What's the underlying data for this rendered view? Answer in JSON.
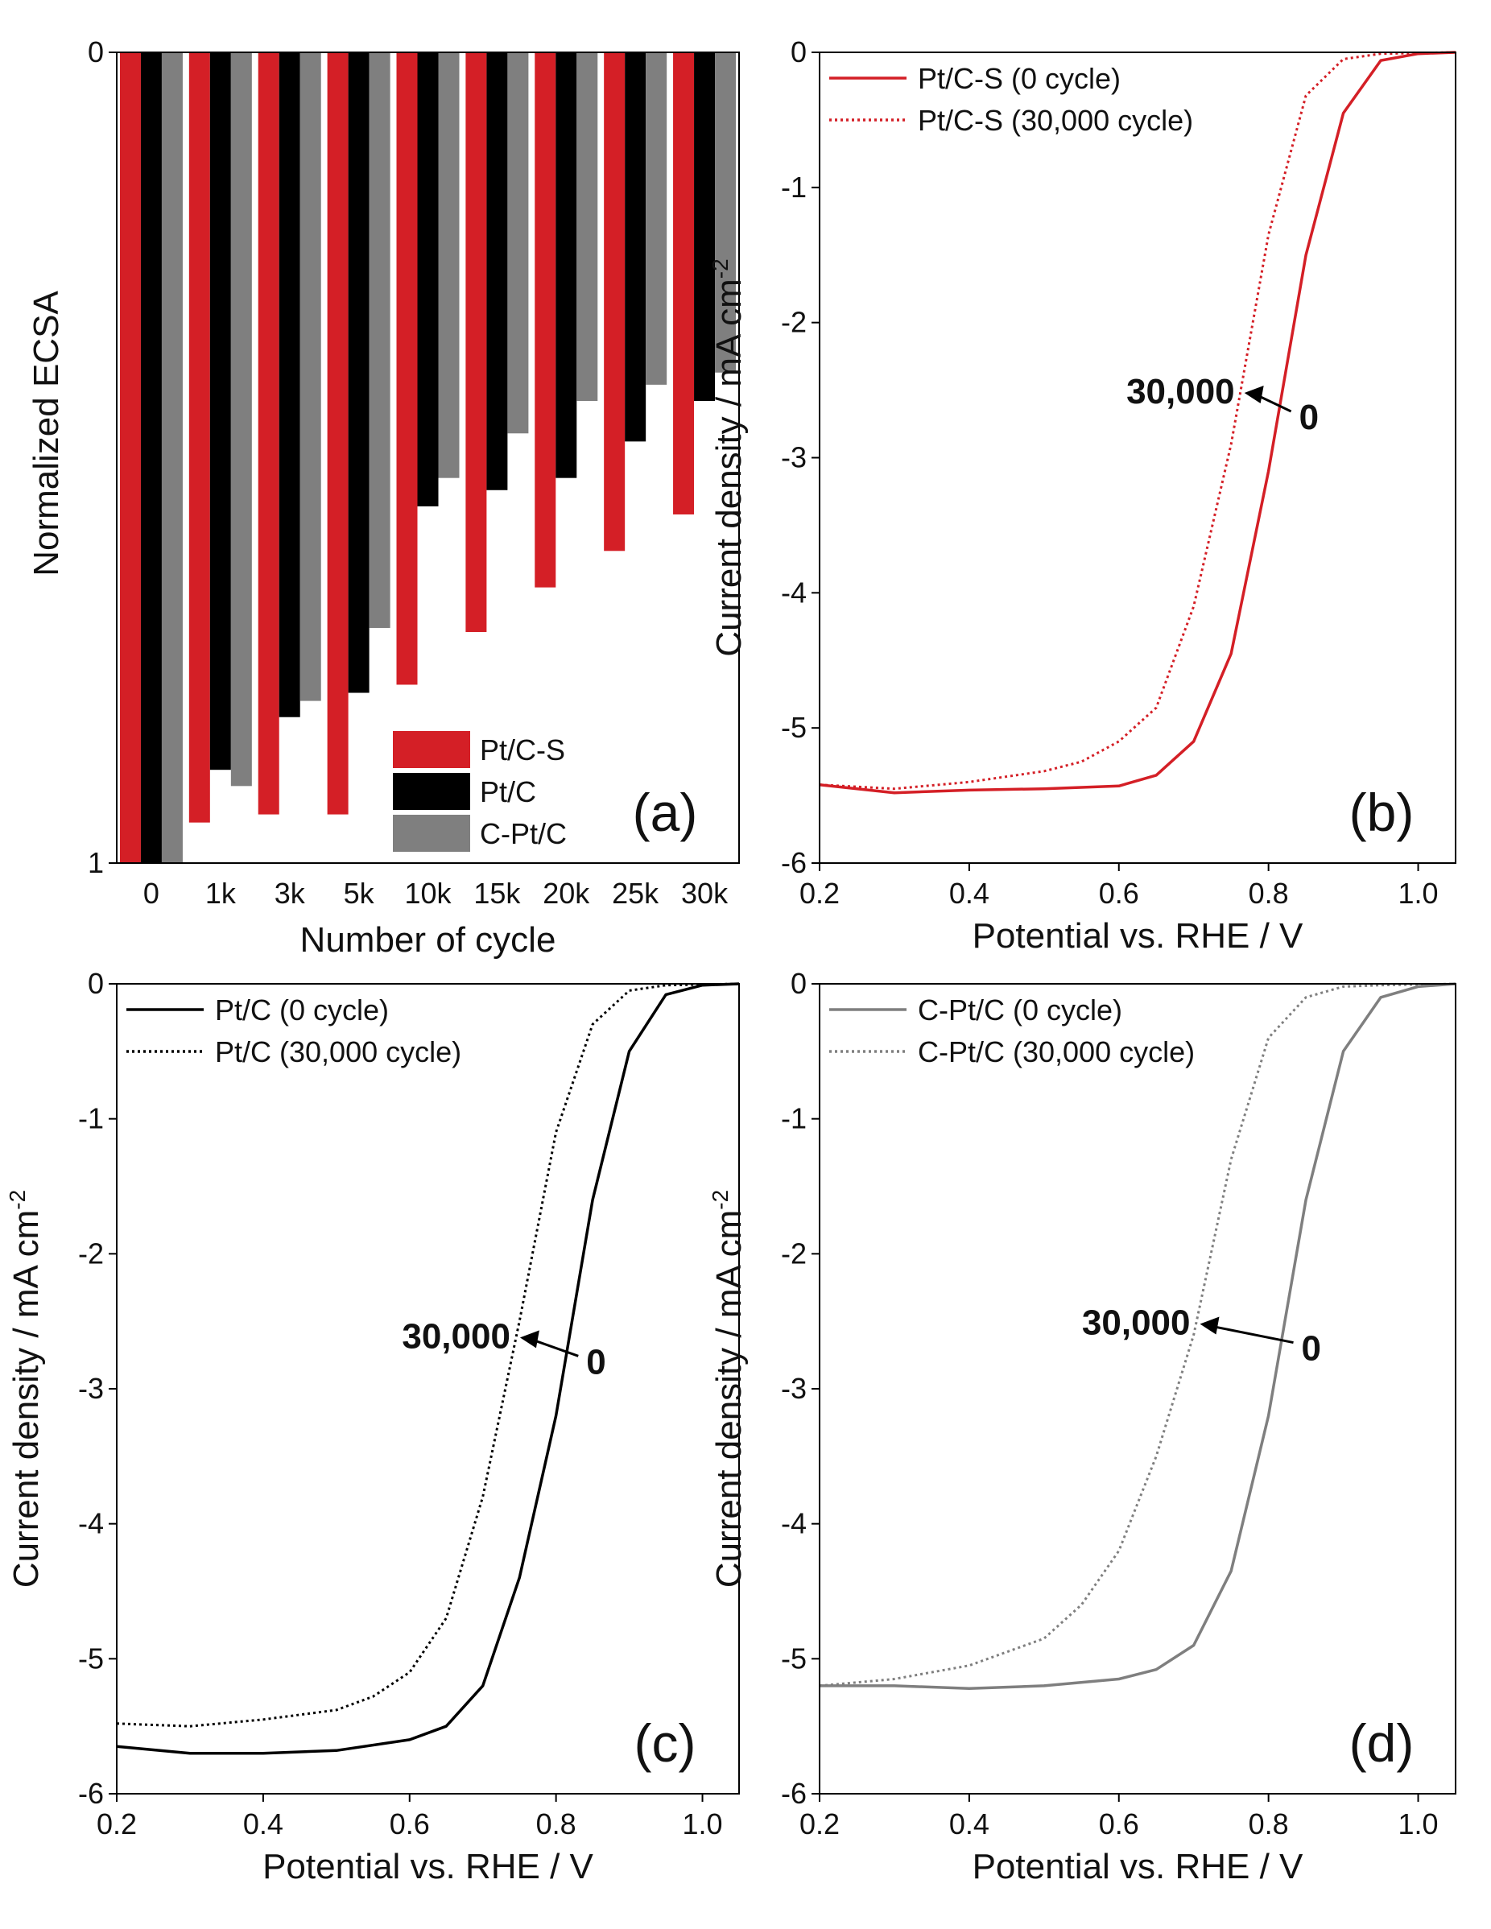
{
  "colors": {
    "pt_c_s": "#d41f26",
    "pt_c": "#000000",
    "c_pt_c": "#7f7f7f"
  },
  "chart_data": [
    {
      "panel": "a",
      "type": "bar",
      "label": "(a)",
      "xlabel": "Number of cycle",
      "ylabel": "Normalized ECSA",
      "categories": [
        "0",
        "1k",
        "3k",
        "5k",
        "10k",
        "15k",
        "20k",
        "25k",
        "30k"
      ],
      "ylim": [
        0,
        1
      ],
      "y_inverted": true,
      "yticks": [
        {
          "value": 0,
          "label": "0"
        },
        {
          "value": 1,
          "label": "1"
        }
      ],
      "legend_position": "bottom-right",
      "series": [
        {
          "name": "Pt/C-S",
          "color": "#d41f26",
          "values": [
            1.0,
            0.95,
            0.94,
            0.94,
            0.78,
            0.715,
            0.66,
            0.615,
            0.57
          ]
        },
        {
          "name": "Pt/C",
          "color": "#000000",
          "values": [
            1.0,
            0.885,
            0.82,
            0.79,
            0.56,
            0.54,
            0.525,
            0.48,
            0.43
          ]
        },
        {
          "name": "C-Pt/C",
          "color": "#7f7f7f",
          "values": [
            1.0,
            0.905,
            0.8,
            0.71,
            0.525,
            0.47,
            0.43,
            0.41,
            0.395
          ]
        }
      ]
    },
    {
      "panel": "b",
      "type": "line",
      "label": "(b)",
      "xlabel": "Potential vs. RHE / V",
      "ylabel": "Current density / mA cm",
      "ylabel_sup": "-2",
      "xlim": [
        0.2,
        1.05
      ],
      "ylim": [
        -6,
        0
      ],
      "xticks": [
        0.2,
        0.4,
        0.6,
        0.8,
        1.0
      ],
      "xtick_labels": [
        "0.2",
        "0.4",
        "0.6",
        "0.8",
        "1.0"
      ],
      "yticks": [
        0,
        -1,
        -2,
        -3,
        -4,
        -5,
        -6
      ],
      "ytick_labels": [
        "0",
        "-1",
        "-2",
        "-3",
        "-4",
        "-5",
        "-6"
      ],
      "legend_position": "top-left",
      "series": [
        {
          "name": "Pt/C-S (0 cycle)",
          "color": "#d41f26",
          "style": "solid",
          "x": [
            0.2,
            0.3,
            0.4,
            0.5,
            0.6,
            0.65,
            0.7,
            0.75,
            0.8,
            0.85,
            0.9,
            0.95,
            1.0,
            1.05
          ],
          "y": [
            -5.42,
            -5.48,
            -5.46,
            -5.45,
            -5.43,
            -5.35,
            -5.1,
            -4.45,
            -3.1,
            -1.5,
            -0.45,
            -0.06,
            -0.01,
            0.0
          ]
        },
        {
          "name": "Pt/C-S (30,000 cycle)",
          "color": "#d41f26",
          "style": "dotted",
          "x": [
            0.2,
            0.3,
            0.4,
            0.5,
            0.55,
            0.6,
            0.65,
            0.7,
            0.75,
            0.8,
            0.85,
            0.9,
            0.95,
            1.05
          ],
          "y": [
            -5.42,
            -5.45,
            -5.4,
            -5.32,
            -5.25,
            -5.1,
            -4.85,
            -4.1,
            -2.9,
            -1.35,
            -0.32,
            -0.05,
            -0.01,
            0.0
          ]
        }
      ],
      "annotation": {
        "from_label": "0",
        "to_label": "30,000",
        "y": -2.55
      }
    },
    {
      "panel": "c",
      "type": "line",
      "label": "(c)",
      "xlabel": "Potential vs. RHE / V",
      "ylabel": "Current density / mA cm",
      "ylabel_sup": "-2",
      "xlim": [
        0.2,
        1.05
      ],
      "ylim": [
        -6,
        0
      ],
      "xticks": [
        0.2,
        0.4,
        0.6,
        0.8,
        1.0
      ],
      "xtick_labels": [
        "0.2",
        "0.4",
        "0.6",
        "0.8",
        "1.0"
      ],
      "yticks": [
        0,
        -1,
        -2,
        -3,
        -4,
        -5,
        -6
      ],
      "ytick_labels": [
        "0",
        "-1",
        "-2",
        "-3",
        "-4",
        "-5",
        "-6"
      ],
      "legend_position": "top-left",
      "series": [
        {
          "name": "Pt/C (0 cycle)",
          "color": "#000000",
          "style": "solid",
          "x": [
            0.2,
            0.3,
            0.4,
            0.5,
            0.6,
            0.65,
            0.7,
            0.75,
            0.8,
            0.85,
            0.9,
            0.95,
            1.0,
            1.05
          ],
          "y": [
            -5.65,
            -5.7,
            -5.7,
            -5.68,
            -5.6,
            -5.5,
            -5.2,
            -4.4,
            -3.2,
            -1.6,
            -0.5,
            -0.08,
            -0.01,
            0.0
          ]
        },
        {
          "name": "Pt/C (30,000 cycle)",
          "color": "#000000",
          "style": "dotted",
          "x": [
            0.2,
            0.3,
            0.4,
            0.5,
            0.55,
            0.6,
            0.65,
            0.7,
            0.75,
            0.8,
            0.85,
            0.9,
            0.95,
            1.05
          ],
          "y": [
            -5.48,
            -5.5,
            -5.45,
            -5.38,
            -5.28,
            -5.1,
            -4.7,
            -3.8,
            -2.5,
            -1.1,
            -0.3,
            -0.05,
            -0.01,
            0.0
          ]
        }
      ],
      "annotation": {
        "from_label": "0",
        "to_label": "30,000",
        "y": -2.65
      }
    },
    {
      "panel": "d",
      "type": "line",
      "label": "(d)",
      "xlabel": "Potential vs. RHE / V",
      "ylabel": "Current density / mA cm",
      "ylabel_sup": "-2",
      "xlim": [
        0.2,
        1.05
      ],
      "ylim": [
        -6,
        0
      ],
      "xticks": [
        0.2,
        0.4,
        0.6,
        0.8,
        1.0
      ],
      "xtick_labels": [
        "0.2",
        "0.4",
        "0.6",
        "0.8",
        "1.0"
      ],
      "yticks": [
        0,
        -1,
        -2,
        -3,
        -4,
        -5,
        -6
      ],
      "ytick_labels": [
        "0",
        "-1",
        "-2",
        "-3",
        "-4",
        "-5",
        "-6"
      ],
      "legend_position": "top-left",
      "series": [
        {
          "name": "C-Pt/C (0 cycle)",
          "color": "#7f7f7f",
          "style": "solid",
          "x": [
            0.2,
            0.3,
            0.4,
            0.5,
            0.6,
            0.65,
            0.7,
            0.75,
            0.8,
            0.85,
            0.9,
            0.95,
            1.0,
            1.05
          ],
          "y": [
            -5.2,
            -5.2,
            -5.22,
            -5.2,
            -5.15,
            -5.08,
            -4.9,
            -4.35,
            -3.2,
            -1.6,
            -0.5,
            -0.1,
            -0.02,
            0.0
          ]
        },
        {
          "name": "C-Pt/C (30,000 cycle)",
          "color": "#7f7f7f",
          "style": "dotted",
          "x": [
            0.2,
            0.3,
            0.4,
            0.5,
            0.55,
            0.6,
            0.65,
            0.7,
            0.75,
            0.8,
            0.85,
            0.9,
            0.95,
            1.05
          ],
          "y": [
            -5.2,
            -5.15,
            -5.05,
            -4.85,
            -4.6,
            -4.2,
            -3.5,
            -2.6,
            -1.3,
            -0.4,
            -0.1,
            -0.02,
            -0.01,
            0.0
          ]
        }
      ],
      "annotation": {
        "from_label": "0",
        "to_label": "30,000",
        "y": -2.55
      }
    }
  ]
}
